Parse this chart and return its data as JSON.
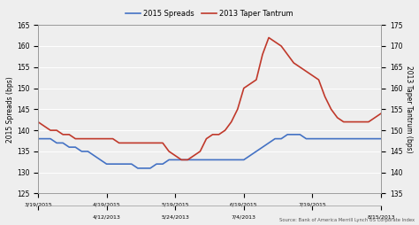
{
  "legend_labels": [
    "2015 Spreads",
    "2013 Taper Tantrum"
  ],
  "legend_colors": [
    "#4472c4",
    "#c0392b"
  ],
  "ylabel_left": "2015 Spreads (bps)",
  "ylabel_right": "2013 Taper Tantrum (bps)",
  "source_text": "Source: Bank of America Merrill Lynch US Corporate Index",
  "xlim": [
    0,
    55
  ],
  "ylim_left": [
    125,
    165
  ],
  "ylim_right": [
    135,
    175
  ],
  "yticks_left": [
    125,
    130,
    135,
    140,
    145,
    150,
    155,
    160,
    165
  ],
  "yticks_right": [
    135,
    140,
    145,
    150,
    155,
    160,
    165,
    170,
    175
  ],
  "xtick_positions": [
    0,
    11,
    22,
    33,
    44,
    55
  ],
  "xtick_labels_top": [
    "3/19/2015",
    "4/19/2015",
    "5/19/2015",
    "6/19/2015",
    "7/19/2015",
    ""
  ],
  "xtick_labels_bottom": [
    "",
    "4/12/2013",
    "5/24/2013",
    "7/4/2013",
    "",
    "8/15/2013"
  ],
  "blue_y": [
    138,
    138,
    138,
    137,
    137,
    136,
    136,
    135,
    135,
    134,
    133,
    132,
    132,
    132,
    132,
    132,
    131,
    131,
    131,
    132,
    132,
    133,
    133,
    133,
    133,
    133,
    133,
    133,
    133,
    133,
    133,
    133,
    133,
    133,
    134,
    135,
    136,
    137,
    138,
    138,
    139,
    139,
    139,
    138,
    138,
    138,
    138,
    138,
    138,
    138,
    138,
    138,
    138,
    138,
    138,
    138
  ],
  "red_y": [
    152,
    151,
    150,
    150,
    149,
    149,
    148,
    148,
    148,
    148,
    148,
    148,
    148,
    147,
    147,
    147,
    147,
    147,
    147,
    147,
    147,
    145,
    144,
    143,
    143,
    144,
    145,
    148,
    149,
    149,
    150,
    152,
    155,
    160,
    161,
    162,
    168,
    172,
    171,
    170,
    168,
    166,
    165,
    164,
    163,
    162,
    158,
    155,
    153,
    152,
    152,
    152,
    152,
    152,
    153,
    154
  ]
}
